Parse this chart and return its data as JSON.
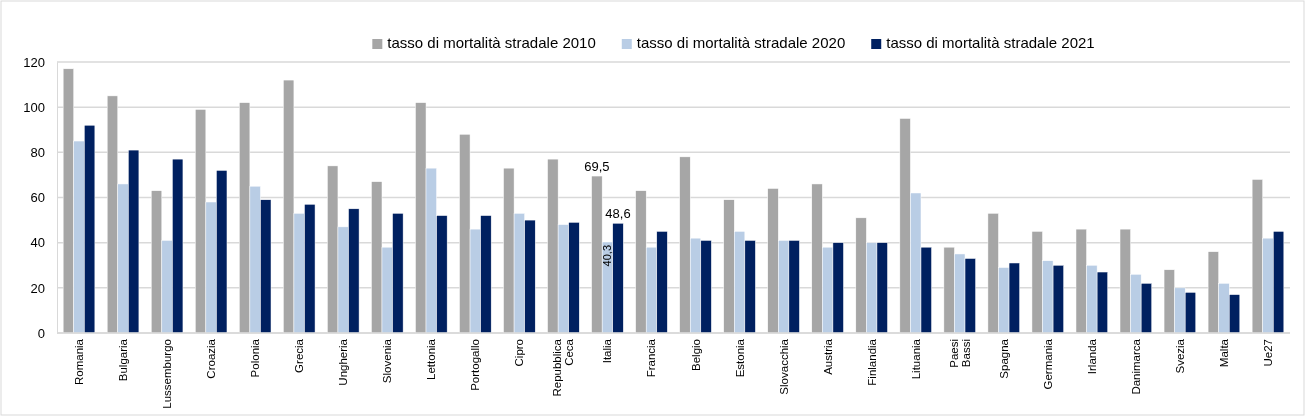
{
  "chart_data": {
    "type": "bar",
    "categories": [
      "Romania",
      "Bulgaria",
      "Lussemburgo",
      "Croazia",
      "Polonia",
      "Grecia",
      "Ungheria",
      "Slovenia",
      "Lettonia",
      "Portogallo",
      "Cipro",
      "Repubblica Ceca",
      "Italia",
      "Francia",
      "Belgio",
      "Estonia",
      "Slovacchia",
      "Austria",
      "Finlandia",
      "Lituania",
      "Paesi Bassi",
      "Spagna",
      "Germania",
      "Irlanda",
      "Danimarca",
      "Svezia",
      "Malta",
      "Ue27"
    ],
    "series": [
      {
        "name": "tasso di mortalità stradale 2010",
        "color": "#a6a6a6",
        "values": [
          117,
          105,
          63,
          99,
          102,
          112,
          74,
          67,
          102,
          88,
          73,
          77,
          69.5,
          63,
          78,
          59,
          64,
          66,
          51,
          95,
          38,
          53,
          45,
          46,
          46,
          28,
          36,
          68
        ],
        "value_labels": [
          null,
          null,
          null,
          null,
          null,
          null,
          null,
          null,
          null,
          null,
          null,
          null,
          "69,5",
          null,
          null,
          null,
          null,
          null,
          null,
          null,
          null,
          null,
          null,
          null,
          null,
          null,
          null,
          null
        ]
      },
      {
        "name": "tasso di mortalità stradale 2020",
        "color": "#b9cde5",
        "values": [
          85,
          66,
          41,
          58,
          65,
          53,
          47,
          38,
          73,
          46,
          53,
          48,
          40.3,
          38,
          42,
          45,
          41,
          38,
          40,
          62,
          35,
          29,
          32,
          30,
          26,
          20,
          22,
          42
        ],
        "value_labels": [
          null,
          null,
          null,
          null,
          null,
          null,
          null,
          null,
          null,
          null,
          null,
          null,
          "40,3",
          null,
          null,
          null,
          null,
          null,
          null,
          null,
          null,
          null,
          null,
          null,
          null,
          null,
          null,
          null
        ]
      },
      {
        "name": "tasso di mortalità stradale 2021",
        "color": "#002060",
        "values": [
          92,
          81,
          77,
          72,
          59,
          57,
          55,
          53,
          52,
          52,
          50,
          49,
          48.6,
          45,
          41,
          41,
          41,
          40,
          40,
          38,
          33,
          31,
          30,
          27,
          22,
          18,
          17,
          45
        ],
        "value_labels": [
          null,
          null,
          null,
          null,
          null,
          null,
          null,
          null,
          null,
          null,
          null,
          null,
          "48,6",
          null,
          null,
          null,
          null,
          null,
          null,
          null,
          null,
          null,
          null,
          null,
          null,
          null,
          null,
          null
        ]
      }
    ],
    "ylim": [
      0,
      120
    ],
    "yticks": [
      0,
      20,
      40,
      60,
      80,
      100,
      120
    ],
    "grid": "y",
    "legend": "top"
  }
}
